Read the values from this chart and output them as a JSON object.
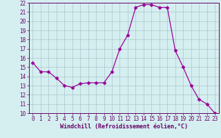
{
  "x": [
    0,
    1,
    2,
    3,
    4,
    5,
    6,
    7,
    8,
    9,
    10,
    11,
    12,
    13,
    14,
    15,
    16,
    17,
    18,
    19,
    20,
    21,
    22,
    23
  ],
  "y": [
    15.5,
    14.5,
    14.5,
    13.8,
    13.0,
    12.8,
    13.2,
    13.3,
    13.3,
    13.3,
    14.5,
    17.0,
    18.5,
    21.5,
    21.8,
    21.8,
    21.5,
    21.5,
    16.8,
    15.0,
    13.0,
    11.5,
    11.0,
    10.0
  ],
  "line_color": "#990099",
  "marker": "D",
  "marker_size": 2.5,
  "bg_color": "#d5eef0",
  "grid_color": "#b0ccd0",
  "xlabel": "Windchill (Refroidissement éolien,°C)",
  "xlim": [
    -0.5,
    23.5
  ],
  "ylim": [
    10,
    22
  ],
  "yticks": [
    10,
    11,
    12,
    13,
    14,
    15,
    16,
    17,
    18,
    19,
    20,
    21,
    22
  ],
  "xticks": [
    0,
    1,
    2,
    3,
    4,
    5,
    6,
    7,
    8,
    9,
    10,
    11,
    12,
    13,
    14,
    15,
    16,
    17,
    18,
    19,
    20,
    21,
    22,
    23
  ],
  "tick_color": "#660066",
  "label_color": "#660066",
  "label_fontsize": 6.0,
  "tick_fontsize": 5.5
}
